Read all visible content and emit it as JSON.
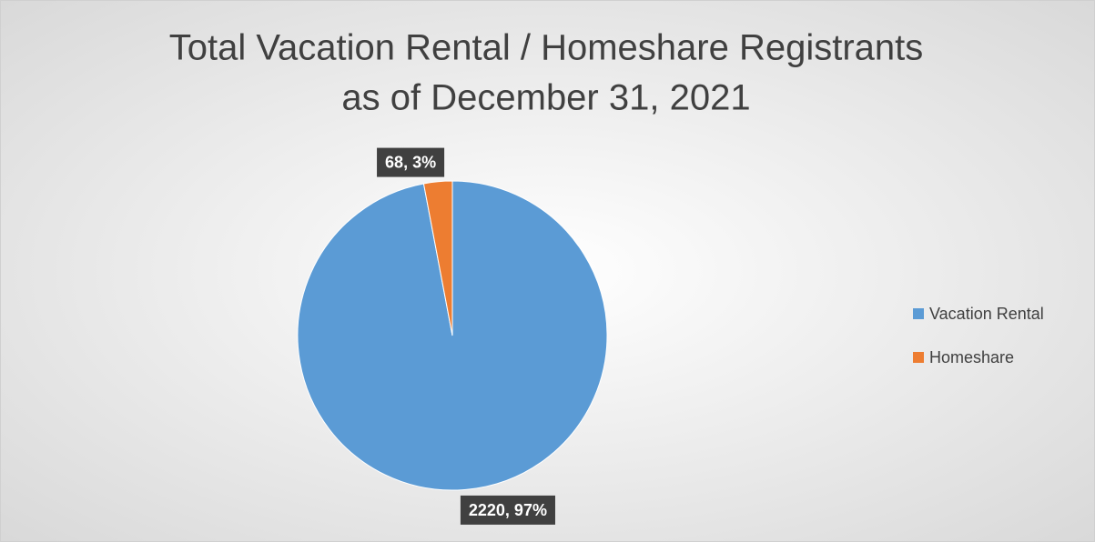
{
  "chart_data": {
    "type": "pie",
    "title": [
      "Total Vacation Rental / Homeshare Registrants",
      "as of December 31, 2021"
    ],
    "categories": [
      "Vacation Rental",
      "Homeshare"
    ],
    "values": [
      2220,
      68
    ],
    "value_labels": [
      "2220, 97%",
      "68, 3%"
    ],
    "colors": [
      "#5b9bd5",
      "#ed7d31"
    ],
    "legend": "right"
  }
}
